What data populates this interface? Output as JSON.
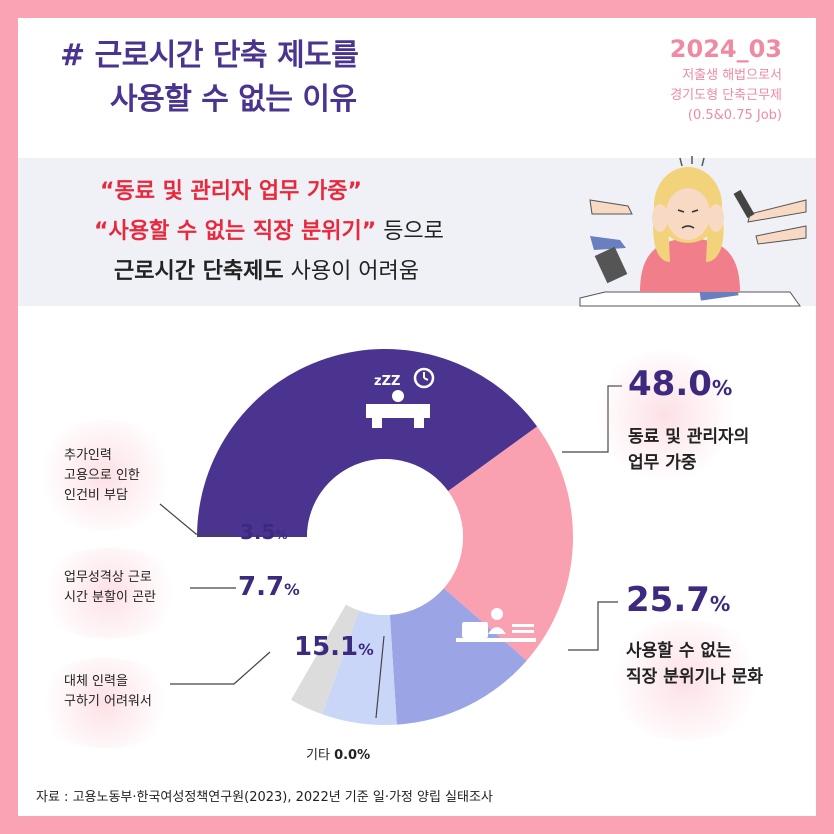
{
  "header": {
    "title_line1": "# 근로시간 단축 제도를",
    "title_line2": "사용할 수 없는 이유",
    "series_tag": "2024_03",
    "subtitle_line1": "저출생 해법으로서",
    "subtitle_line2": "경기도형 단축근무제",
    "subtitle_line3": "(0.5&0.75 Job)"
  },
  "banner": {
    "quote1": "“동료 및 관리자 업무 가중”",
    "quote2": "“사용할 수 없는 직장 분위기”",
    "quote2_suffix": " 등으로",
    "line3_bold": "근로시간 단축제도",
    "line3_rest": " 사용이 어려움"
  },
  "chart_data": {
    "type": "pie",
    "style": "half-donut",
    "categories": [
      "동료 및 관리자의 업무 가중",
      "사용할 수 없는 직장 분위기나 문화",
      "대체 인력을 구하기 어려워서",
      "업무성격상 근로 시간 분할이 곤란",
      "추가인력 고용으로 인한 인건비 부담",
      "기타"
    ],
    "values": [
      48.0,
      25.7,
      15.1,
      7.7,
      3.5,
      0.0
    ],
    "value_labels": [
      "48.0",
      "25.7",
      "15.1",
      "7.7",
      "3.5",
      "0.0%"
    ],
    "unit": "%",
    "colors": [
      "#4a3490",
      "#f9a1b1",
      "#9ba4e4",
      "#c9d6f8",
      "#dcdcdc",
      "#888888"
    ]
  },
  "labels": {
    "cat1_line1": "동료 및 관리자의",
    "cat1_line2": "업무 가중",
    "cat2_line1": "사용할 수 없는",
    "cat2_line2": "직장 분위기나 문화",
    "cat3_line1": "대체 인력을",
    "cat3_line2": "구하기 어려워서",
    "cat4_line1": "업무성격상 근로",
    "cat4_line2": "시간 분할이 곤란",
    "cat5_line1": "추가인력",
    "cat5_line2": "고용으로 인한",
    "cat5_line3": "인건비 부담",
    "cat6": "기타",
    "pct_unit": "%"
  },
  "footer": {
    "source": "자료 : 고용노동부·한국여성정책연구원(2023), 2022년 기준 일·가정 양립 실태조사"
  },
  "icons": {
    "worker_icon": "office-desk-clock-icon",
    "laptop_icon": "laptop-person-icon",
    "illustration": "stressed-woman-illustration"
  }
}
